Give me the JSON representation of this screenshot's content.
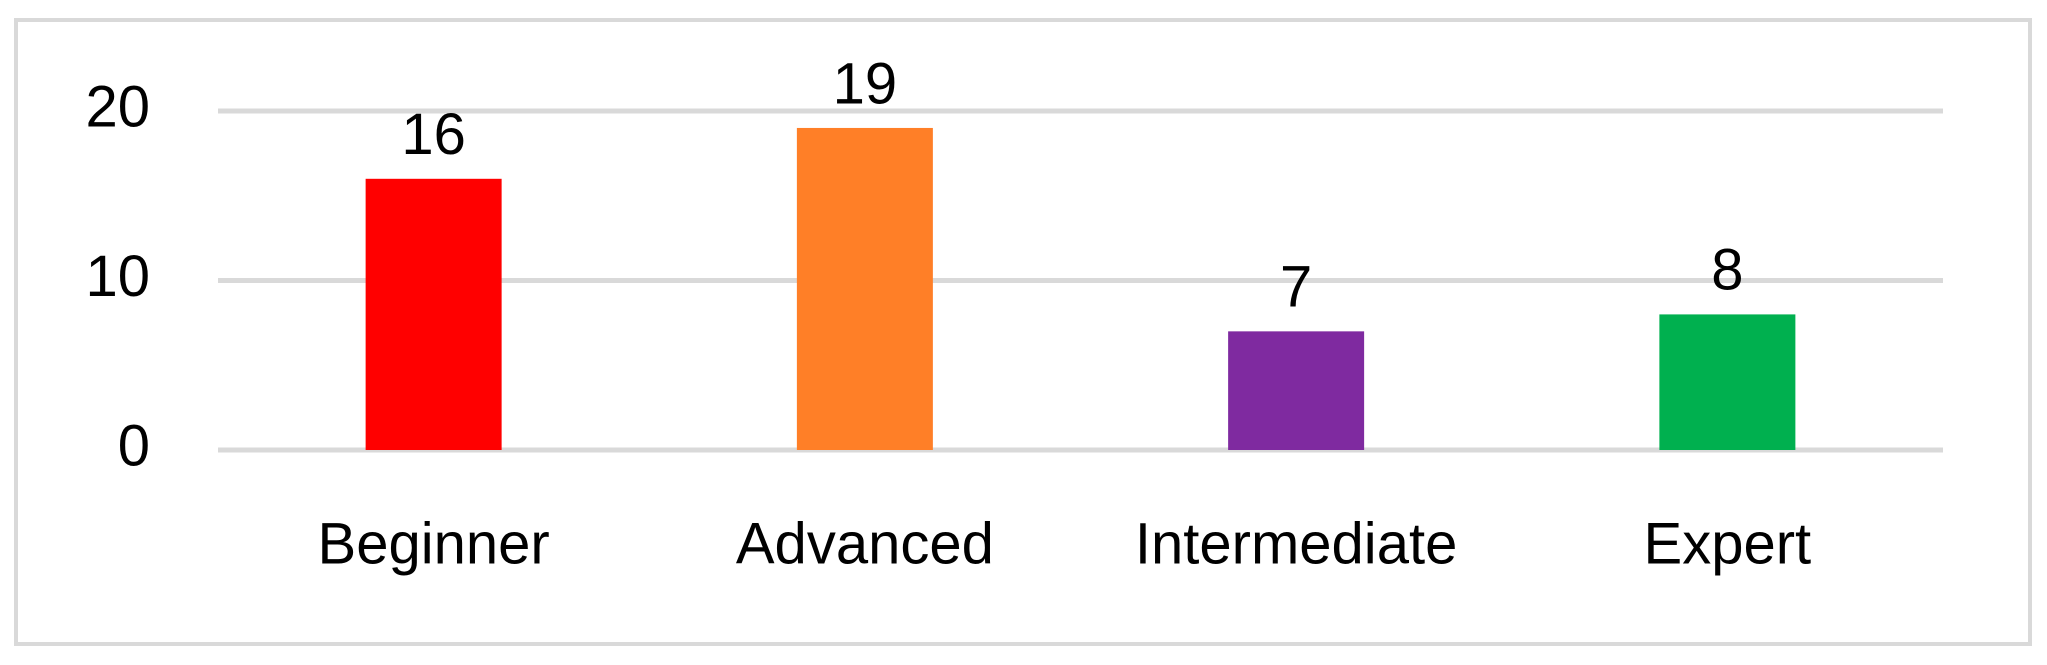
{
  "chart_data": {
    "type": "bar",
    "categories": [
      "Beginner",
      "Advanced",
      "Intermediate",
      "Expert"
    ],
    "values": [
      16,
      19,
      7,
      8
    ],
    "colors": [
      "#ff0000",
      "#ff7f27",
      "#7f2aa0",
      "#00b04f"
    ],
    "ylim": [
      0,
      20
    ],
    "yticks": [
      0,
      10,
      20
    ],
    "grid": true
  }
}
